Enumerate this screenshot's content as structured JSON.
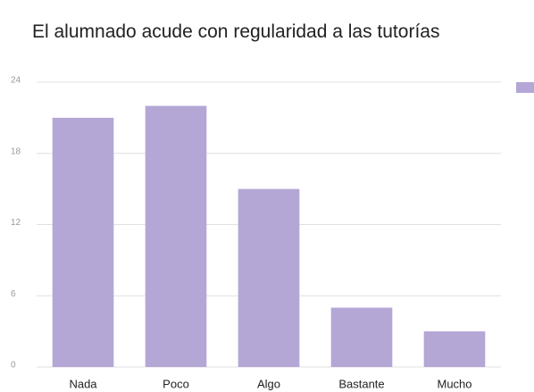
{
  "chart_data": {
    "type": "bar",
    "title": "El alumnado acude con regularidad a las tutorías",
    "categories": [
      "Nada",
      "Poco",
      "Algo",
      "Bastante",
      "Mucho"
    ],
    "values": [
      21,
      22,
      15,
      5,
      3
    ],
    "color": "#b4a7d6",
    "ylim": [
      0,
      24
    ],
    "yticks": [
      0,
      6,
      12,
      18,
      24
    ],
    "grid": true
  }
}
